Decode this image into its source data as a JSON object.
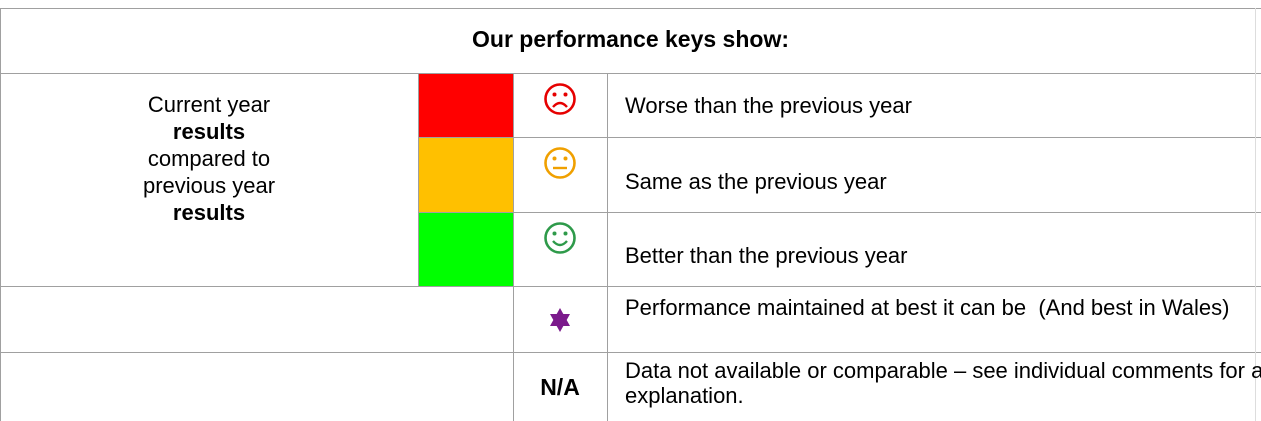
{
  "header": {
    "title": "Our performance keys show:"
  },
  "key_label": [
    "Current year",
    "results",
    "compared to",
    "previous year",
    "results"
  ],
  "rows": [
    {
      "description": "Worse than the previous year"
    },
    {
      "description": "Same as the previous year"
    },
    {
      "description": "Better than the previous year"
    },
    {
      "description": "Performance maintained at best it can be  (And best in Wales)"
    },
    {
      "symbol": "N/A",
      "description": "Data not available or comparable – see individual comments for an explanation."
    }
  ]
}
